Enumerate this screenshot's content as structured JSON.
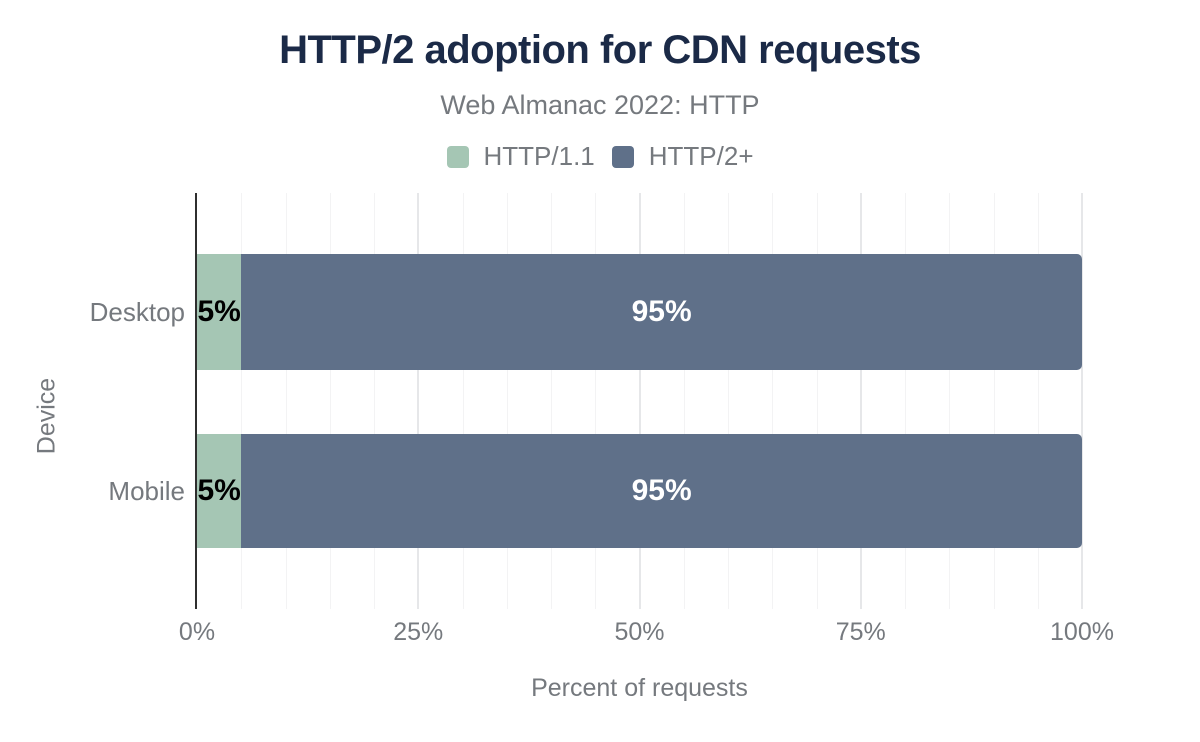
{
  "header": {
    "title": "HTTP/2 adoption for CDN requests",
    "subtitle": "Web Almanac 2022: HTTP"
  },
  "legend": [
    {
      "label": "HTTP/1.1",
      "color": "#a5c6b4"
    },
    {
      "label": "HTTP/2+",
      "color": "#5f7089"
    }
  ],
  "chart_data": {
    "type": "bar",
    "orientation": "horizontal",
    "stacked": true,
    "title": "HTTP/2 adoption for CDN requests",
    "subtitle": "Web Almanac 2022: HTTP",
    "categories": [
      "Desktop",
      "Mobile"
    ],
    "series": [
      {
        "name": "HTTP/1.1",
        "color": "#a5c6b4",
        "values": [
          5,
          5
        ],
        "labels": [
          "5%",
          "5%"
        ],
        "label_color": "#000000"
      },
      {
        "name": "HTTP/2+",
        "color": "#5f7089",
        "values": [
          95,
          95
        ],
        "labels": [
          "95%",
          "95%"
        ],
        "label_color": "#ffffff"
      }
    ],
    "xlabel": "Percent of requests",
    "ylabel": "Device",
    "xlim": [
      0,
      100
    ],
    "x_ticks": [
      {
        "value": 0,
        "label": "0%"
      },
      {
        "value": 25,
        "label": "25%"
      },
      {
        "value": 50,
        "label": "50%"
      },
      {
        "value": 75,
        "label": "75%"
      },
      {
        "value": 100,
        "label": "100%"
      }
    ],
    "minor_grid_step": 5,
    "grid": true,
    "legend_position": "top"
  },
  "colors": {
    "title_text": "#1b2a47",
    "muted_text": "#75797e",
    "axis_line": "#2f2f2f",
    "grid_minor": "#f3f3f4",
    "grid_major": "#e6e7e9",
    "background": "#ffffff"
  }
}
